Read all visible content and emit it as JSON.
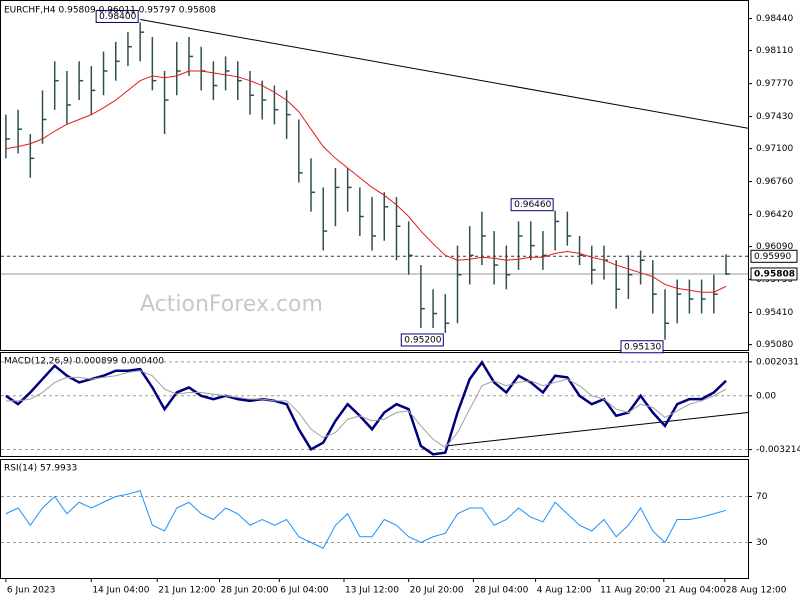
{
  "chart_data": [
    {
      "type": "ohlc",
      "title": "EURCHF,H4 0.95809 0.96011 0.95797 0.95808",
      "watermark": "ActionForex.com",
      "color": "#2f4f4f",
      "high": [
        0.9745,
        0.975,
        0.9725,
        0.977,
        0.98,
        0.979,
        0.98,
        0.9795,
        0.981,
        0.982,
        0.983,
        0.984,
        0.9825,
        0.979,
        0.982,
        0.9825,
        0.9815,
        0.98,
        0.9805,
        0.98,
        0.979,
        0.978,
        0.9775,
        0.977,
        0.974,
        0.97,
        0.967,
        0.969,
        0.969,
        0.967,
        0.966,
        0.9665,
        0.966,
        0.9635,
        0.959,
        0.9565,
        0.956,
        0.961,
        0.963,
        0.9645,
        0.9625,
        0.961,
        0.9635,
        0.9635,
        0.9625,
        0.9646,
        0.9645,
        0.962,
        0.961,
        0.961,
        0.9595,
        0.96,
        0.9605,
        0.9595,
        0.9565,
        0.9575,
        0.9575,
        0.9575,
        0.958,
        0.96011
      ],
      "low": [
        0.97,
        0.9705,
        0.968,
        0.9715,
        0.975,
        0.9735,
        0.976,
        0.9745,
        0.9765,
        0.978,
        0.9795,
        0.98,
        0.977,
        0.9725,
        0.9765,
        0.9785,
        0.977,
        0.976,
        0.977,
        0.976,
        0.9745,
        0.974,
        0.9735,
        0.972,
        0.9675,
        0.9645,
        0.9605,
        0.963,
        0.9645,
        0.962,
        0.9605,
        0.9615,
        0.9595,
        0.958,
        0.9525,
        0.9525,
        0.952,
        0.953,
        0.957,
        0.959,
        0.957,
        0.9565,
        0.9585,
        0.9595,
        0.9585,
        0.9605,
        0.961,
        0.959,
        0.957,
        0.9575,
        0.9545,
        0.9555,
        0.957,
        0.954,
        0.9513,
        0.953,
        0.954,
        0.954,
        0.954,
        0.95797
      ],
      "close": [
        0.972,
        0.973,
        0.97,
        0.974,
        0.978,
        0.9755,
        0.978,
        0.977,
        0.979,
        0.98,
        0.9815,
        0.983,
        0.978,
        0.976,
        0.979,
        0.9805,
        0.979,
        0.9775,
        0.979,
        0.978,
        0.9765,
        0.976,
        0.975,
        0.9745,
        0.9685,
        0.9665,
        0.9625,
        0.967,
        0.967,
        0.964,
        0.962,
        0.965,
        0.963,
        0.96,
        0.9545,
        0.954,
        0.953,
        0.958,
        0.96,
        0.962,
        0.959,
        0.958,
        0.962,
        0.961,
        0.96,
        0.9635,
        0.962,
        0.96,
        0.9585,
        0.9595,
        0.9565,
        0.958,
        0.9595,
        0.956,
        0.953,
        0.956,
        0.9555,
        0.9555,
        0.956,
        0.95808
      ],
      "ma": {
        "color": "#e41a1c",
        "values": [
          0.971,
          0.9712,
          0.9715,
          0.972,
          0.9728,
          0.9735,
          0.974,
          0.9745,
          0.9752,
          0.976,
          0.977,
          0.978,
          0.9785,
          0.9783,
          0.9785,
          0.979,
          0.979,
          0.9788,
          0.9786,
          0.9784,
          0.978,
          0.9775,
          0.9768,
          0.976,
          0.9748,
          0.973,
          0.9712,
          0.97,
          0.969,
          0.968,
          0.967,
          0.9662,
          0.9652,
          0.964,
          0.9625,
          0.9612,
          0.96,
          0.9595,
          0.9596,
          0.9598,
          0.9597,
          0.9595,
          0.9596,
          0.9598,
          0.9598,
          0.9602,
          0.9604,
          0.9602,
          0.9598,
          0.9595,
          0.959,
          0.9586,
          0.9582,
          0.9578,
          0.957,
          0.9566,
          0.9564,
          0.9562,
          0.9562,
          0.9568
        ]
      },
      "xlim": [
        -0.4,
        60.8
      ],
      "ylim": [
        0.95045,
        0.9858
      ],
      "yticks": [
        {
          "value": 0.9844,
          "label": "0.98440"
        },
        {
          "value": 0.9811,
          "label": "0.98110"
        },
        {
          "value": 0.9777,
          "label": "0.97770"
        },
        {
          "value": 0.9743,
          "label": "0.97430"
        },
        {
          "value": 0.971,
          "label": "0.97100"
        },
        {
          "value": 0.9676,
          "label": "0.96760"
        },
        {
          "value": 0.9642,
          "label": "0.96420"
        },
        {
          "value": 0.9609,
          "label": "0.96090"
        },
        {
          "value": 0.9575,
          "label": "0.95750"
        },
        {
          "value": 0.9541,
          "label": "0.95410"
        },
        {
          "value": 0.9508,
          "label": "0.95080"
        }
      ],
      "annotations": [
        {
          "label": "0.98400",
          "x": 11,
          "y": 0.984
        },
        {
          "label": "0.96460",
          "x": 45,
          "y": 0.9646
        },
        {
          "label": "0.95200",
          "x": 36,
          "y": 0.952
        },
        {
          "label": "0.95130",
          "x": 54,
          "y": 0.9513
        }
      ],
      "levels": [
        {
          "value": 0.9599,
          "label": "0.95990",
          "style": "dashed"
        },
        {
          "value": 0.95808,
          "label": "0.95808",
          "style": "solid"
        }
      ],
      "trendlines": [
        {
          "x": [
            11,
            60.8
          ],
          "y": [
            0.9843,
            0.9731
          ]
        }
      ]
    },
    {
      "type": "macd",
      "title": "MACD(12,26,9) 0.000899 0.000400",
      "series": [
        {
          "color": "#00007f",
          "values": [
            0.0,
            -0.0005,
            0.0002,
            0.001,
            0.0018,
            0.0012,
            0.0008,
            0.001,
            0.0012,
            0.0015,
            0.0015,
            0.0016,
            0.0005,
            -0.0008,
            0.0002,
            0.0005,
            0.0,
            -0.0002,
            0.0,
            -0.0002,
            -0.0003,
            -0.0002,
            -0.0003,
            -0.0005,
            -0.002,
            -0.0032,
            -0.0028,
            -0.0015,
            -0.0005,
            -0.0012,
            -0.002,
            -0.001,
            -0.0005,
            -0.0008,
            -0.003,
            -0.0035,
            -0.0034,
            -0.001,
            0.001,
            0.002,
            0.0008,
            0.0002,
            0.0012,
            0.0008,
            0.0002,
            0.0012,
            0.0011,
            0.0,
            -0.0005,
            -0.0002,
            -0.0012,
            -0.001,
            0.0,
            -0.001,
            -0.0018,
            -0.0005,
            -0.0002,
            -0.0002,
            0.0002,
            0.000899
          ]
        },
        {
          "color": "#a0a0a0",
          "values": [
            -0.0003,
            -0.0003,
            -0.0002,
            0.0002,
            0.0008,
            0.0011,
            0.0011,
            0.001,
            0.0011,
            0.0012,
            0.0014,
            0.0015,
            0.0012,
            0.0004,
            0.0001,
            0.0002,
            0.0002,
            0.0001,
            0.0,
            -0.0001,
            -0.0002,
            -0.0002,
            -0.0003,
            -0.0003,
            -0.001,
            -0.002,
            -0.0025,
            -0.0022,
            -0.0014,
            -0.0012,
            -0.0015,
            -0.0014,
            -0.001,
            -0.0009,
            -0.0018,
            -0.0026,
            -0.0031,
            -0.0022,
            -0.0008,
            0.0006,
            0.0009,
            0.0006,
            0.0008,
            0.0009,
            0.0006,
            0.0008,
            0.001,
            0.0006,
            0.0,
            -0.0002,
            -0.0008,
            -0.001,
            -0.0005,
            -0.0007,
            -0.0013,
            -0.0009,
            -0.0005,
            -0.0003,
            0.0,
            0.0004
          ]
        }
      ],
      "xlim": [
        -0.4,
        60.8
      ],
      "ylim": [
        -0.0036,
        0.0025
      ],
      "yticks": [
        0.002031,
        {
          "value": 0,
          "label": "0.00"
        },
        -0.003214
      ],
      "trendlines": [
        {
          "x": [
            36,
            60.8
          ],
          "y": [
            -0.003,
            -0.001
          ]
        }
      ]
    },
    {
      "type": "rsi",
      "title": "RSI(14) 57.9933",
      "color": "#1e90ff",
      "values": [
        55,
        60,
        45,
        60,
        70,
        55,
        65,
        60,
        65,
        70,
        72,
        75,
        45,
        40,
        60,
        65,
        55,
        50,
        60,
        55,
        45,
        50,
        45,
        50,
        35,
        30,
        25,
        45,
        55,
        35,
        35,
        50,
        45,
        35,
        30,
        35,
        38,
        55,
        60,
        60,
        45,
        50,
        60,
        52,
        48,
        65,
        55,
        45,
        40,
        50,
        35,
        45,
        60,
        40,
        30,
        50,
        50,
        52,
        55,
        57.9933
      ],
      "xlim": [
        -0.4,
        60.8
      ],
      "ylim": [
        0,
        100
      ],
      "yticks": [
        70,
        30
      ],
      "xticks": [
        {
          "value": 0,
          "label": "6 Jun 2023"
        },
        {
          "value": 7,
          "label": "14 Jun 04:00"
        },
        {
          "value": 12.4,
          "label": "21 Jun 12:00"
        },
        {
          "value": 17.5,
          "label": "28 Jun 20:00"
        },
        {
          "value": 22.4,
          "label": "6 Jul 04:00"
        },
        {
          "value": 27.7,
          "label": "13 Jul 12:00"
        },
        {
          "value": 33,
          "label": "20 Jul 20:00"
        },
        {
          "value": 38.3,
          "label": "28 Jul 04:00"
        },
        {
          "value": 43.4,
          "label": "4 Aug 12:00"
        },
        {
          "value": 48.6,
          "label": "11 Aug 20:00"
        },
        {
          "value": 53.9,
          "label": "21 Aug 04:00"
        },
        {
          "value": 58.9,
          "label": "28 Aug 12:00"
        }
      ]
    }
  ]
}
